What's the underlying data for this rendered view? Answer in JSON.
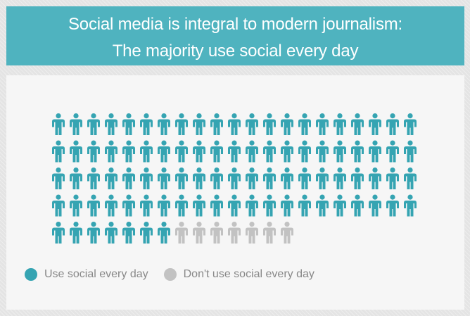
{
  "header": {
    "title_line1": "Social media is integral to modern journalism:",
    "title_line2": "The majority use social every day"
  },
  "chart_data": {
    "type": "pictogram",
    "icon": "person-icon",
    "total": 98,
    "per_row": 21,
    "series": [
      {
        "name": "Use social every day",
        "value": 91,
        "color": "#35a4b2"
      },
      {
        "name": "Don't use social every day",
        "value": 7,
        "color": "#c2c2c2"
      }
    ]
  },
  "legend": {
    "items": [
      {
        "label": "Use social every day",
        "color": "#35a4b2"
      },
      {
        "label": "Don't use social every day",
        "color": "#c2c2c2"
      }
    ]
  }
}
